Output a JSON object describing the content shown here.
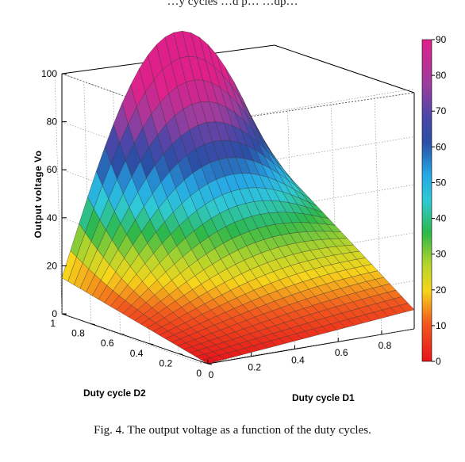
{
  "page": {
    "top_text": "…y cycles …d p… …dp…",
    "caption": "Fig. 4.  The output voltage as a function of the duty cycles."
  },
  "chart_data": {
    "type": "surface",
    "title": "",
    "xlabel": "Duty cycle D1",
    "ylabel": "Duty cycle D2",
    "zlabel": "Output voltage Vo",
    "xlim": [
      0,
      0.95
    ],
    "ylim": [
      0,
      1
    ],
    "zlim": [
      0,
      100
    ],
    "x_ticks": [
      0,
      0.2,
      0.4,
      0.6,
      0.8
    ],
    "y_ticks": [
      0,
      0.2,
      0.4,
      0.6,
      0.8,
      1
    ],
    "z_ticks": [
      0,
      20,
      40,
      60,
      80,
      100
    ],
    "x_tick_labels": [
      "0",
      "0.2",
      "0.4",
      "0.6",
      "0.8"
    ],
    "y_tick_labels": [
      "0",
      "0.2",
      "0.4",
      "0.6",
      "0.8",
      "1"
    ],
    "z_tick_labels": [
      "0",
      "20",
      "40",
      "60",
      "80",
      "100"
    ],
    "grid": true,
    "colormap": "jet_reversed",
    "colorbar": {
      "range": [
        0,
        90
      ],
      "ticks": [
        0,
        10,
        20,
        30,
        40,
        50,
        60,
        70,
        80,
        90
      ],
      "tick_labels": [
        "0",
        "10",
        "20",
        "30",
        "40",
        "50",
        "60",
        "70",
        "80",
        "90"
      ],
      "placement": "right"
    },
    "surface_samples": [
      {
        "D1": 0,
        "D2": 0,
        "Vo": 0
      },
      {
        "D1": 0,
        "D2": 1,
        "Vo": 15
      },
      {
        "D1": 0.95,
        "D2": 0,
        "Vo": 8
      },
      {
        "D1": 0.95,
        "D2": 1,
        "Vo": 52
      },
      {
        "D1": 0.7,
        "D2": 1,
        "Vo": 90
      }
    ]
  }
}
